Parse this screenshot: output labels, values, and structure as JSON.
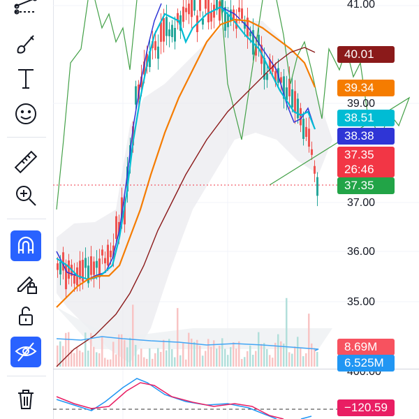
{
  "toolbar": {
    "tools": [
      {
        "name": "pattern-tool-icon",
        "active": false
      },
      {
        "name": "brush-icon",
        "active": false
      },
      {
        "name": "text-icon",
        "active": false
      },
      {
        "name": "emoji-icon",
        "active": false
      },
      {
        "name": "ruler-icon",
        "active": false
      },
      {
        "name": "zoom-in-icon",
        "active": false
      },
      {
        "name": "magnet-icon",
        "active": true
      },
      {
        "name": "lock-drawings-icon",
        "active": false
      },
      {
        "name": "unlock-icon",
        "active": false
      },
      {
        "name": "hide-drawings-icon",
        "active": true
      },
      {
        "name": "trash-icon",
        "active": false
      }
    ],
    "text_tool_glyph": "T"
  },
  "price_axis": {
    "labels": [
      "41.00",
      "39.00",
      "37.00",
      "36.00",
      "35.00",
      "400.00"
    ]
  },
  "tags": {
    "ma_dark": {
      "value": "40.01",
      "color": "#8b1a1a"
    },
    "ma_orange": {
      "value": "39.34",
      "color": "#f57c00"
    },
    "ma_cyan": {
      "value": "38.51",
      "color": "#00bcd4"
    },
    "ma_blue": {
      "value": "38.38",
      "color": "#2f35d6"
    },
    "last_price": {
      "value": "37.35",
      "countdown": "26:46",
      "color": "#f23645"
    },
    "current": {
      "value": "37.35",
      "color": "#22a447"
    },
    "volume_red": {
      "value": "8.69M",
      "color": "#f7525f"
    },
    "volume_blue": {
      "value": "6.525M",
      "color": "#2196f3"
    },
    "osc": {
      "value": "−120.59",
      "color": "#e91e63"
    }
  },
  "colors": {
    "up": "#26a69a",
    "down": "#ef5350",
    "grid": "#f0f3fa",
    "crosshair": "#f23645"
  }
}
